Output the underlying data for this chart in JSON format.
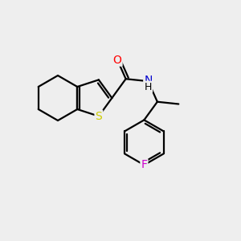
{
  "bg_color": "#eeeeee",
  "bond_color": "#000000",
  "bond_width": 1.6,
  "atom_colors": {
    "O": "#ff0000",
    "N": "#0000cd",
    "S": "#cccc00",
    "F": "#cc00cc",
    "C": "#000000",
    "H": "#000000"
  },
  "font_size": 9.5,
  "figsize": [
    3.0,
    3.0
  ],
  "dpi": 100,
  "BL": 28
}
